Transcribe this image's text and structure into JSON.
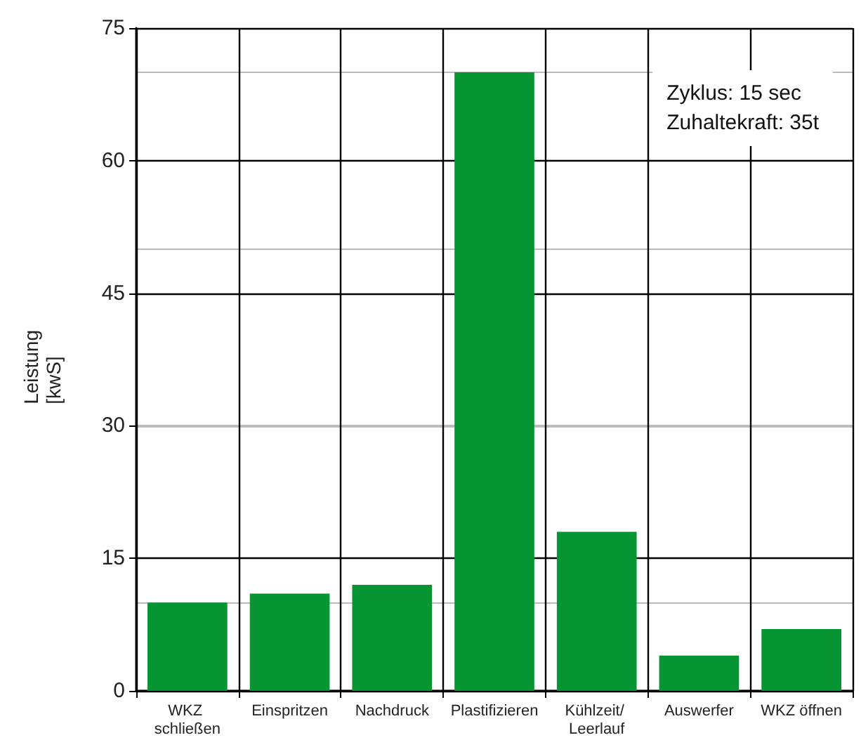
{
  "chart_data": {
    "type": "bar",
    "ylabel": "Leistung\n[kwS]",
    "categories": [
      "WKZ schließen",
      "Einspritzen",
      "Nachdruck",
      "Plastifizieren",
      "Kühlzeit/ Leerlauf",
      "Auswerfer",
      "WKZ öffnen"
    ],
    "values": [
      10,
      11,
      12,
      70,
      18,
      4,
      7
    ],
    "color": "#079433",
    "ylim": [
      0,
      75
    ],
    "yticks": [
      0,
      15,
      30,
      45,
      60,
      75
    ],
    "grid": true,
    "annotations": [
      "Zyklus: 15 sec",
      "Zuhaltekraft: 35t"
    ]
  }
}
